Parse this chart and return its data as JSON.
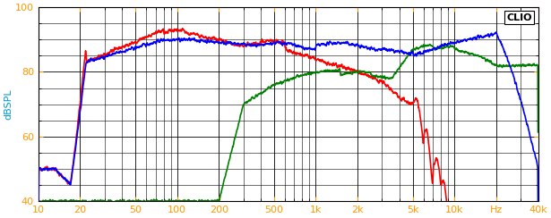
{
  "title": "CLIO",
  "ylabel": "dBSPL",
  "xlabel_hz": "Hz",
  "xmin": 10,
  "xmax": 40000,
  "ymin": 40,
  "ymax": 100,
  "yticks": [
    40,
    60,
    80,
    100
  ],
  "xticks_major": [
    10,
    20,
    50,
    100,
    200,
    500,
    1000,
    2000,
    5000,
    10000,
    20000,
    40000
  ],
  "xtick_labels": [
    "10",
    "20",
    "50",
    "100",
    "200",
    "500",
    "1k",
    "2k",
    "5k",
    "10k",
    "Hz",
    "40k"
  ],
  "background_color": "#ffffff",
  "grid_color": "#000000",
  "blue_color": "#0000ff",
  "red_color": "#ff0000",
  "green_color": "#008000",
  "line_width": 1.2,
  "ylabel_color": "#0099cc",
  "tick_color": "#ff9900"
}
